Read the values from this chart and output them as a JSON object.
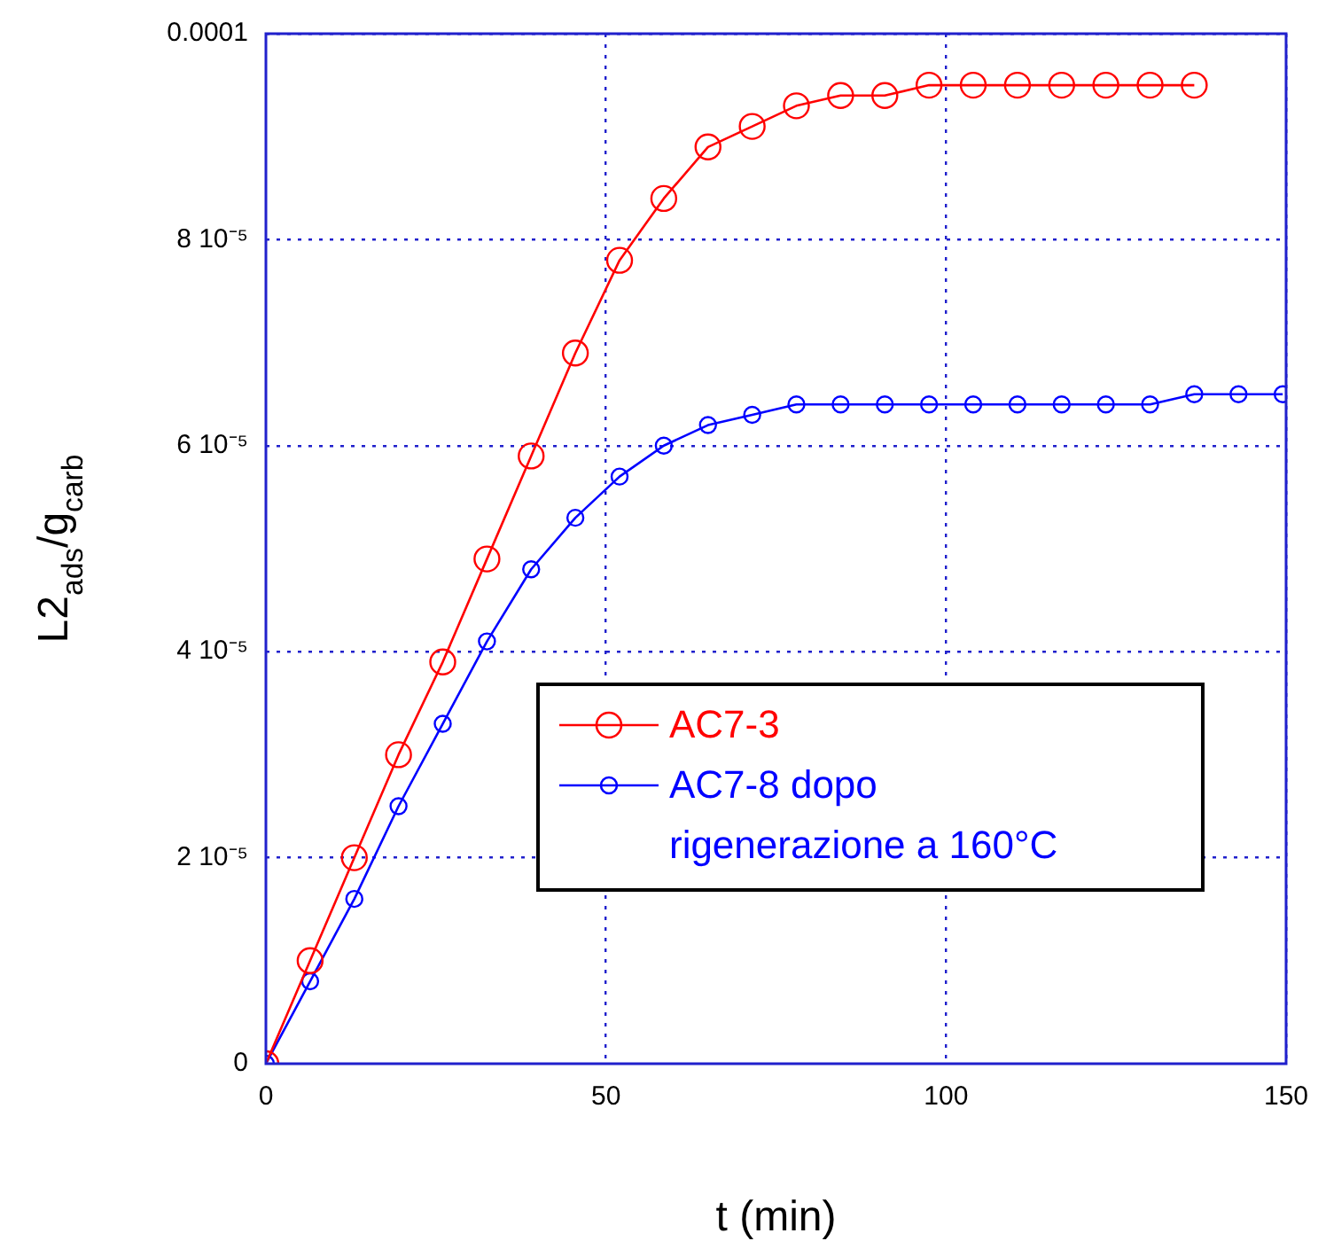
{
  "chart_data": {
    "type": "line",
    "xlabel": "t (min)",
    "ylabel": "L2$_{ads}$/g$_{carb}$",
    "xlim": [
      0,
      150
    ],
    "xticks": [
      0,
      50,
      100,
      150
    ],
    "ylim": [
      0,
      0.0001
    ],
    "yticks": [
      0,
      {
        "value": 2e-05,
        "label": "2 10⁻⁵"
      },
      {
        "value": 4e-05,
        "label": "4 10⁻⁵"
      },
      {
        "value": 6e-05,
        "label": "6 10⁻⁵"
      },
      {
        "value": 8e-05,
        "label": "8 10⁻⁵"
      },
      0.0001
    ],
    "grid": true,
    "legend": "bottom right",
    "marker": "circle",
    "line_style": "solid",
    "series": [
      {
        "name": "AC7-3",
        "color": "#ff0000",
        "x": [
          0,
          6.5,
          13,
          19.5,
          26,
          32.5,
          39,
          45.5,
          52,
          58.5,
          65,
          71.5,
          78,
          84.5,
          91,
          97.5,
          104,
          110.5,
          117,
          123.5,
          130,
          136.5
        ],
        "values": [
          0,
          1e-05,
          2e-05,
          3e-05,
          3.9e-05,
          4.9e-05,
          5.9e-05,
          6.9e-05,
          7.8e-05,
          8.4e-05,
          8.9e-05,
          9.1e-05,
          9.3e-05,
          9.4e-05,
          9.4e-05,
          9.5e-05,
          9.5e-05,
          9.5e-05,
          9.5e-05,
          9.5e-05,
          9.5e-05,
          9.5e-05
        ]
      },
      {
        "name": "AC7-8 dopo\nrigenerazione a 160°C",
        "color": "#0000ff",
        "x": [
          0,
          6.5,
          13,
          19.5,
          26,
          32.5,
          39,
          45.5,
          52,
          58.5,
          65,
          71.5,
          78,
          84.5,
          91,
          97.5,
          104,
          110.5,
          117,
          123.5,
          130,
          136.5,
          143,
          149.5
        ],
        "values": [
          0,
          8e-06,
          1.6e-05,
          2.5e-05,
          3.3e-05,
          4.1e-05,
          4.8e-05,
          5.3e-05,
          5.7e-05,
          6e-05,
          6.2e-05,
          6.3e-05,
          6.4e-05,
          6.4e-05,
          6.4e-05,
          6.4e-05,
          6.4e-05,
          6.4e-05,
          6.4e-05,
          6.4e-05,
          6.4e-05,
          6.5e-05,
          6.5e-05,
          6.5e-05
        ]
      }
    ]
  }
}
